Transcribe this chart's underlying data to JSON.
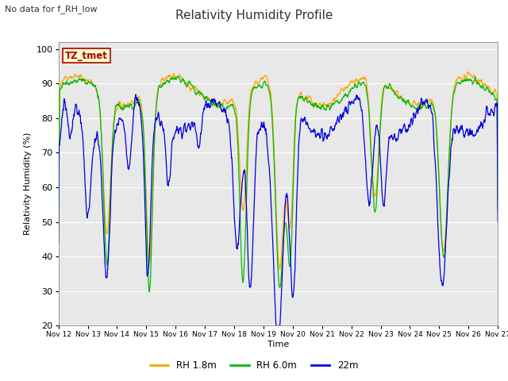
{
  "title": "Relativity Humidity Profile",
  "subtitle": "No data for f_RH_low",
  "ylabel": "Relativity Humidity (%)",
  "xlabel": "Time",
  "ylim": [
    20,
    102
  ],
  "yticks": [
    20,
    30,
    40,
    50,
    60,
    70,
    80,
    90,
    100
  ],
  "color_rh18": "#FFA500",
  "color_rh60": "#00BB00",
  "color_22m": "#0000DD",
  "legend_labels": [
    "RH 1.8m",
    "RH 6.0m",
    "22m"
  ],
  "tz_label": "TZ_tmet",
  "background_color": "#FFFFFF",
  "plot_bg_color": "#E8E8E8",
  "xtick_labels": [
    "Nov 12",
    "Nov 13",
    "Nov 14",
    "Nov 15",
    "Nov 16",
    "Nov 17",
    "Nov 18",
    "Nov 19",
    "Nov 20",
    "Nov 21",
    "Nov 22",
    "Nov 23",
    "Nov 24",
    "Nov 25",
    "Nov 26",
    "Nov 27"
  ]
}
